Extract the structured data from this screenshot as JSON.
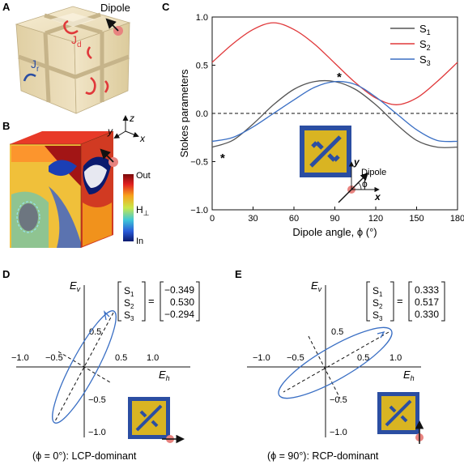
{
  "panels": {
    "A": {
      "letter": "A",
      "dipole_label": "Dipole",
      "jd_label": "J",
      "jd_sub": "d",
      "jr_label": "J",
      "jr_sub": "r"
    },
    "B": {
      "letter": "B",
      "axes": {
        "z": "z",
        "y": "y",
        "x": "x"
      },
      "colorbar_top": "Out",
      "colorbar_mid": "H",
      "colorbar_mid_sub": "⊥",
      "colorbar_bottom": "In"
    },
    "C": {
      "letter": "C",
      "inset_y": "y",
      "inset_x": "x",
      "inset_dipole": "Dipole",
      "inset_phi": "ϕ",
      "star": "*"
    },
    "D": {
      "letter": "D",
      "ev_label": "E",
      "ev_sub": "v",
      "eh_label": "E",
      "eh_sub": "h",
      "caption": "(ϕ = 0°): LCP-dominant",
      "stokes_names": [
        {
          "main": "S",
          "sub": "1"
        },
        {
          "main": "S",
          "sub": "2"
        },
        {
          "main": "S",
          "sub": "3"
        }
      ],
      "equals": "=",
      "stokes_values": [
        "−0.349",
        "0.530",
        "−0.294"
      ],
      "ticks_x": [
        "−1.0",
        "−0.5",
        "0.5",
        "1.0"
      ],
      "ticks_y": [
        "0.5",
        "−0.5",
        "−1.0"
      ]
    },
    "E": {
      "letter": "E",
      "ev_label": "E",
      "ev_sub": "v",
      "eh_label": "E",
      "eh_sub": "h",
      "caption": "(ϕ = 90°): RCP-dominant",
      "stokes_names": [
        {
          "main": "S",
          "sub": "1"
        },
        {
          "main": "S",
          "sub": "2"
        },
        {
          "main": "S",
          "sub": "3"
        }
      ],
      "equals": "=",
      "stokes_values": [
        "0.333",
        "0.517",
        "0.330"
      ],
      "ticks_x": [
        "−1.0",
        "−0.5",
        "0.5",
        "1.0"
      ],
      "ticks_y": [
        "0.5",
        "−0.5",
        "−1.0"
      ]
    }
  },
  "colors": {
    "S1": "#555555",
    "S2": "#e0383a",
    "S3": "#3a6fc4",
    "ellipse": "#3a6fc4",
    "gold": "#d9b422",
    "navy": "#2b4ea2",
    "dipole_dot": "#e8837f"
  },
  "chart_data": {
    "type": "line",
    "title": "",
    "xlabel": "Dipole angle, ϕ (°)",
    "ylabel": "Stokes parameters",
    "xlim": [
      0,
      180
    ],
    "ylim": [
      -1.0,
      1.0
    ],
    "xticks": [
      0,
      30,
      60,
      90,
      120,
      150,
      180
    ],
    "yticks": [
      -1.0,
      -0.5,
      0.0,
      0.5,
      1.0
    ],
    "reference_line": 0.0,
    "legend_placement": "top-right",
    "x": [
      0,
      15,
      30,
      45,
      60,
      75,
      90,
      105,
      120,
      135,
      150,
      165,
      180
    ],
    "series": [
      {
        "name": "S",
        "sub": "1",
        "key": "S1",
        "values": [
          -0.35,
          -0.28,
          -0.11,
          0.09,
          0.25,
          0.33,
          0.33,
          0.25,
          0.09,
          -0.11,
          -0.28,
          -0.35,
          -0.35
        ]
      },
      {
        "name": "S",
        "sub": "2",
        "key": "S2",
        "values": [
          0.53,
          0.72,
          0.87,
          0.94,
          0.87,
          0.72,
          0.52,
          0.32,
          0.16,
          0.09,
          0.16,
          0.33,
          0.53
        ]
      },
      {
        "name": "S",
        "sub": "3",
        "key": "S3",
        "values": [
          -0.29,
          -0.25,
          -0.14,
          0.0,
          0.14,
          0.27,
          0.33,
          0.3,
          0.17,
          0.0,
          -0.17,
          -0.28,
          -0.29
        ]
      }
    ]
  }
}
